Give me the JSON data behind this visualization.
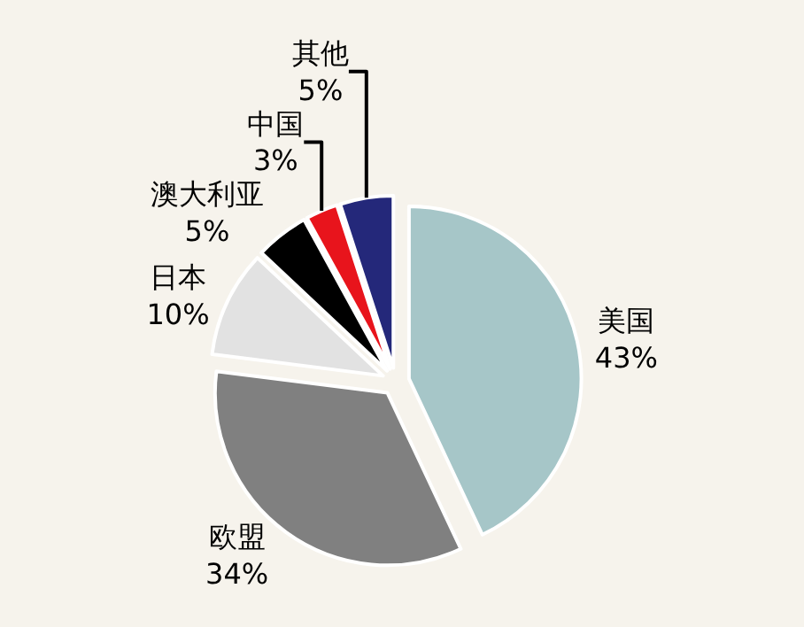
{
  "chart_data": {
    "type": "pie",
    "categories": [
      "美国",
      "欧盟",
      "日本",
      "澳大利亚",
      "中国",
      "其他"
    ],
    "values": [
      43,
      34,
      10,
      5,
      3,
      5
    ],
    "value_labels": [
      "43%",
      "34%",
      "10%",
      "5%",
      "3%",
      "5%"
    ],
    "colors": [
      "#a6c6c8",
      "#808080",
      "#e2e2e2",
      "#000000",
      "#e8141c",
      "#24287a"
    ],
    "legend": false
  }
}
